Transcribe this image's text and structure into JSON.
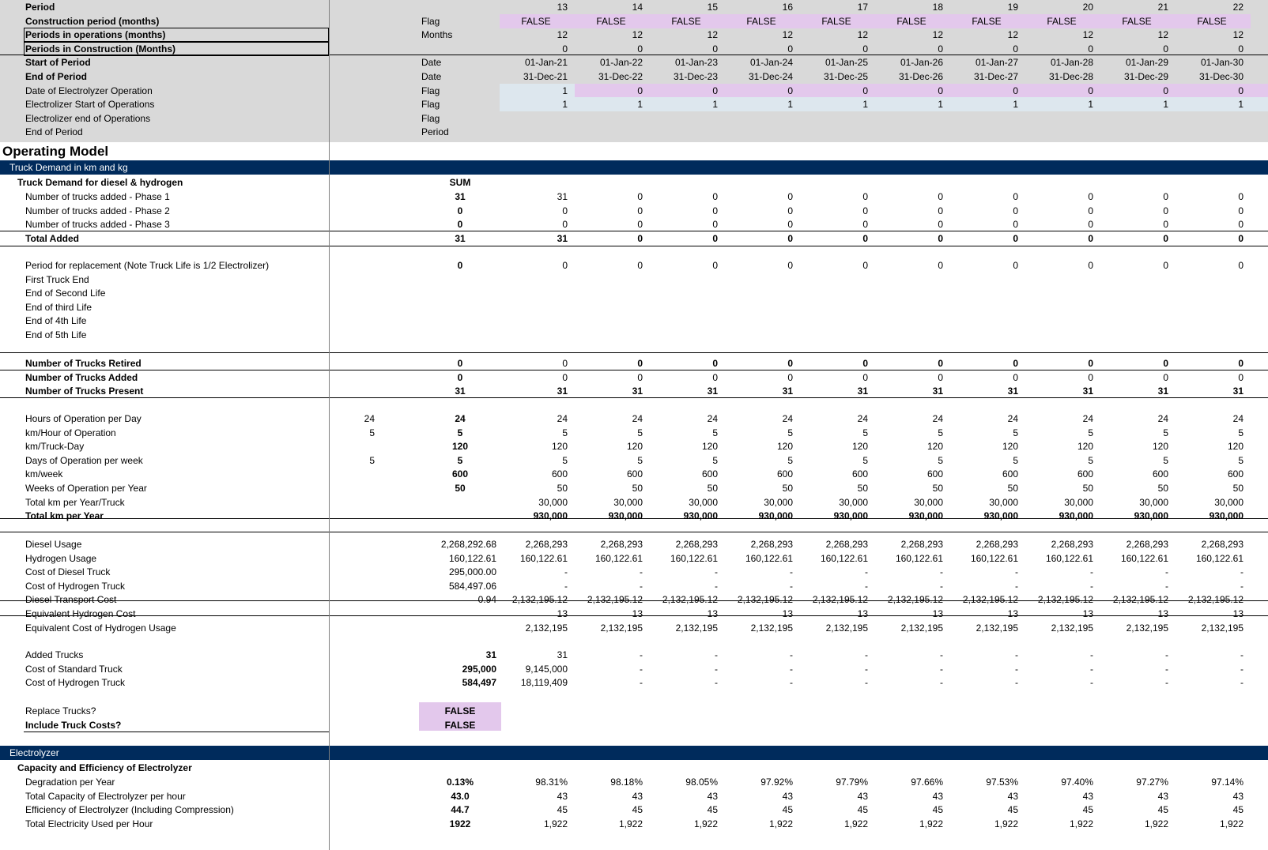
{
  "colors": {
    "header_grey": "#d9d9d9",
    "band_navy": "#002b5c",
    "flag_pink": "#e3c8ec",
    "input_blue": "#dde7ee"
  },
  "top": [
    {
      "label": "Period",
      "bold": true,
      "unit": "",
      "vals": [
        "13",
        "14",
        "15",
        "16",
        "17",
        "18",
        "19",
        "20",
        "21",
        "22"
      ]
    },
    {
      "label": "Construction period (months)",
      "bold": true,
      "unit": "Flag",
      "vals": [
        "FALSE",
        "FALSE",
        "FALSE",
        "FALSE",
        "FALSE",
        "FALSE",
        "FALSE",
        "FALSE",
        "FALSE",
        "FALSE"
      ],
      "center": true,
      "pink": true
    },
    {
      "label": "Periods in operations (months)",
      "bold": true,
      "unit": "Months",
      "vals": [
        "12",
        "12",
        "12",
        "12",
        "12",
        "12",
        "12",
        "12",
        "12",
        "12"
      ],
      "boxed": true
    },
    {
      "label": "Periods in Construction (Months)",
      "bold": true,
      "unit": "",
      "vals": [
        "0",
        "0",
        "0",
        "0",
        "0",
        "0",
        "0",
        "0",
        "0",
        "0"
      ],
      "boxed": true
    },
    {
      "label": "Start of Period",
      "bold": true,
      "unit": "Date",
      "vals": [
        "01-Jan-21",
        "01-Jan-22",
        "01-Jan-23",
        "01-Jan-24",
        "01-Jan-25",
        "01-Jan-26",
        "01-Jan-27",
        "01-Jan-28",
        "01-Jan-29",
        "01-Jan-30"
      ]
    },
    {
      "label": "End of Period",
      "bold": true,
      "unit": "Date",
      "vals": [
        "31-Dec-21",
        "31-Dec-22",
        "31-Dec-23",
        "31-Dec-24",
        "31-Dec-25",
        "31-Dec-26",
        "31-Dec-27",
        "31-Dec-28",
        "31-Dec-29",
        "31-Dec-30"
      ]
    },
    {
      "label": "Date of Electrolyzer Operation",
      "bold": false,
      "unit": "Flag",
      "vals": [
        "1",
        "0",
        "0",
        "0",
        "0",
        "0",
        "0",
        "0",
        "0",
        "0"
      ],
      "pinkrow": true
    },
    {
      "label": "Electrolizer Start of Operations",
      "bold": false,
      "unit": "Flag",
      "vals": [
        "1",
        "1",
        "1",
        "1",
        "1",
        "1",
        "1",
        "1",
        "1",
        "1"
      ],
      "bluerow": true
    },
    {
      "label": "Electrolizer end of Operations",
      "bold": false,
      "unit": "Flag",
      "vals": []
    },
    {
      "label": "End of Period",
      "bold": false,
      "unit": "Period",
      "vals": []
    }
  ],
  "section_title": "Operating Model",
  "band_truck": "Truck Demand in km and kg",
  "band_electrolyzer": "Electrolyzer",
  "truck_sub": "Truck Demand for diesel & hydrogen",
  "sum_header": "SUM",
  "rows_a": [
    {
      "label": "Number of trucks added - Phase 1",
      "sum": "31",
      "vals": [
        "31",
        "0",
        "0",
        "0",
        "0",
        "0",
        "0",
        "0",
        "0",
        "0"
      ]
    },
    {
      "label": "Number of trucks added - Phase 2",
      "sum": "0",
      "vals": [
        "0",
        "0",
        "0",
        "0",
        "0",
        "0",
        "0",
        "0",
        "0",
        "0"
      ]
    },
    {
      "label": "Number of trucks added - Phase 3",
      "sum": "0",
      "vals": [
        "0",
        "0",
        "0",
        "0",
        "0",
        "0",
        "0",
        "0",
        "0",
        "0"
      ]
    },
    {
      "label": "Total Added",
      "sum": "31",
      "vals": [
        "31",
        "0",
        "0",
        "0",
        "0",
        "0",
        "0",
        "0",
        "0",
        "0"
      ],
      "boldrow": true
    }
  ],
  "rows_b": [
    {
      "label": "Period for replacement (Note Truck Life is 1/2 Electrolizer)",
      "sum": "0",
      "vals": [
        "0",
        "0",
        "0",
        "0",
        "0",
        "0",
        "0",
        "0",
        "0",
        "0"
      ]
    },
    {
      "label": "First Truck End",
      "sum": "",
      "vals": []
    },
    {
      "label": "End of Second Life",
      "sum": "",
      "vals": []
    },
    {
      "label": "End of third Life",
      "sum": "",
      "vals": []
    },
    {
      "label": "End of 4th Life",
      "sum": "",
      "vals": []
    },
    {
      "label": "End of 5th Life",
      "sum": "",
      "vals": []
    }
  ],
  "rows_c": [
    {
      "label": "Number of Trucks Retired",
      "sum": "0",
      "vals": [
        "0",
        "0",
        "0",
        "0",
        "0",
        "0",
        "0",
        "0",
        "0",
        "0"
      ],
      "boldlabel": true,
      "boldvals": [
        false,
        true,
        true,
        true,
        true,
        true,
        true,
        true,
        true,
        true
      ]
    },
    {
      "label": "Number of Trucks Added",
      "sum": "0",
      "vals": [
        "0",
        "0",
        "0",
        "0",
        "0",
        "0",
        "0",
        "0",
        "0",
        "0"
      ],
      "boldlabel": true
    },
    {
      "label": "Number of Trucks Present",
      "sum": "31",
      "vals": [
        "31",
        "31",
        "31",
        "31",
        "31",
        "31",
        "31",
        "31",
        "31",
        "31"
      ],
      "boldlabel": true,
      "boldvals": [
        true,
        true,
        true,
        true,
        true,
        true,
        true,
        true,
        true,
        true
      ]
    }
  ],
  "rows_d": [
    {
      "label": "Hours of Operation per Day",
      "pre": "24",
      "sum": "24",
      "vals": [
        "24",
        "24",
        "24",
        "24",
        "24",
        "24",
        "24",
        "24",
        "24",
        "24"
      ]
    },
    {
      "label": "km/Hour of Operation",
      "pre": "5",
      "sum": "5",
      "vals": [
        "5",
        "5",
        "5",
        "5",
        "5",
        "5",
        "5",
        "5",
        "5",
        "5"
      ]
    },
    {
      "label": "km/Truck-Day",
      "pre": "",
      "sum": "120",
      "vals": [
        "120",
        "120",
        "120",
        "120",
        "120",
        "120",
        "120",
        "120",
        "120",
        "120"
      ]
    },
    {
      "label": "Days of Operation per week",
      "pre": "5",
      "sum": "5",
      "vals": [
        "5",
        "5",
        "5",
        "5",
        "5",
        "5",
        "5",
        "5",
        "5",
        "5"
      ]
    },
    {
      "label": "km/week",
      "pre": "",
      "sum": "600",
      "vals": [
        "600",
        "600",
        "600",
        "600",
        "600",
        "600",
        "600",
        "600",
        "600",
        "600"
      ]
    },
    {
      "label": "Weeks of Operation per Year",
      "pre": "",
      "sum": "50",
      "vals": [
        "50",
        "50",
        "50",
        "50",
        "50",
        "50",
        "50",
        "50",
        "50",
        "50"
      ]
    },
    {
      "label": "Total km per Year/Truck",
      "pre": "",
      "sum": "",
      "vals": [
        "30,000",
        "30,000",
        "30,000",
        "30,000",
        "30,000",
        "30,000",
        "30,000",
        "30,000",
        "30,000",
        "30,000"
      ]
    },
    {
      "label": "Total km per Year",
      "pre": "",
      "sum": "",
      "vals": [
        "930,000",
        "930,000",
        "930,000",
        "930,000",
        "930,000",
        "930,000",
        "930,000",
        "930,000",
        "930,000",
        "930,000"
      ],
      "boldrow": true
    }
  ],
  "rows_e": [
    {
      "label": "Diesel Usage",
      "sum": "2,268,292.68",
      "vals": [
        "2,268,293",
        "2,268,293",
        "2,268,293",
        "2,268,293",
        "2,268,293",
        "2,268,293",
        "2,268,293",
        "2,268,293",
        "2,268,293",
        "2,268,293"
      ]
    },
    {
      "label": "Hydrogen Usage",
      "sum": "160,122.61",
      "vals": [
        "160,122.61",
        "160,122.61",
        "160,122.61",
        "160,122.61",
        "160,122.61",
        "160,122.61",
        "160,122.61",
        "160,122.61",
        "160,122.61",
        "160,122.61"
      ]
    },
    {
      "label": "Cost of Diesel Truck",
      "sum": "295,000.00",
      "vals": [
        "-",
        "-",
        "-",
        "-",
        "-",
        "-",
        "-",
        "-",
        "-",
        "-"
      ]
    },
    {
      "label": "Cost of Hydrogen Truck",
      "sum": "584,497.06",
      "vals": [
        "-",
        "-",
        "-",
        "-",
        "-",
        "-",
        "-",
        "-",
        "-",
        "-"
      ]
    },
    {
      "label": "Diesel Transport Cost",
      "sum": "0.94",
      "vals": [
        "2,132,195.12",
        "2,132,195.12",
        "2,132,195.12",
        "2,132,195.12",
        "2,132,195.12",
        "2,132,195.12",
        "2,132,195.12",
        "2,132,195.12",
        "2,132,195.12",
        "2,132,195.12"
      ]
    },
    {
      "label": "Equivalent Hydrogen Cost",
      "sum": "",
      "vals": [
        "13",
        "13",
        "13",
        "13",
        "13",
        "13",
        "13",
        "13",
        "13",
        "13"
      ]
    },
    {
      "label": "Equivalent Cost of Hydrogen Usage",
      "sum": "",
      "vals": [
        "2,132,195",
        "2,132,195",
        "2,132,195",
        "2,132,195",
        "2,132,195",
        "2,132,195",
        "2,132,195",
        "2,132,195",
        "2,132,195",
        "2,132,195"
      ]
    }
  ],
  "rows_f": [
    {
      "label": "Added Trucks",
      "sum": "31",
      "vals": [
        "31",
        "-",
        "-",
        "-",
        "-",
        "-",
        "-",
        "-",
        "-",
        "-"
      ]
    },
    {
      "label": "Cost of Standard Truck",
      "sum": "295,000",
      "vals": [
        "9,145,000",
        "-",
        "-",
        "-",
        "-",
        "-",
        "-",
        "-",
        "-",
        "-"
      ]
    },
    {
      "label": "Cost of Hydrogen Truck",
      "sum": "584,497",
      "vals": [
        "18,119,409",
        "-",
        "-",
        "-",
        "-",
        "-",
        "-",
        "-",
        "-",
        "-"
      ]
    }
  ],
  "rows_g": [
    {
      "label": "Replace Trucks?",
      "sum": "FALSE"
    },
    {
      "label": "Include Truck Costs?",
      "sum": "FALSE"
    }
  ],
  "elec_sub": "Capacity and Efficiency of Electrolyzer",
  "rows_h": [
    {
      "label": "Degradation per Year",
      "sum": "0.13%",
      "vals": [
        "98.31%",
        "98.18%",
        "98.05%",
        "97.92%",
        "97.79%",
        "97.66%",
        "97.53%",
        "97.40%",
        "97.27%",
        "97.14%"
      ]
    },
    {
      "label": "Total Capacity of Electrolyzer per hour",
      "sum": "43.0",
      "vals": [
        "43",
        "43",
        "43",
        "43",
        "43",
        "43",
        "43",
        "43",
        "43",
        "43"
      ]
    },
    {
      "label": "Efficiency of Electrolyzer (Including Compression)",
      "sum": "44.7",
      "vals": [
        "45",
        "45",
        "45",
        "45",
        "45",
        "45",
        "45",
        "45",
        "45",
        "45"
      ]
    },
    {
      "label": "Total Electricity Used per Hour",
      "sum": "1922",
      "vals": [
        "1,922",
        "1,922",
        "1,922",
        "1,922",
        "1,922",
        "1,922",
        "1,922",
        "1,922",
        "1,922",
        "1,922"
      ]
    }
  ]
}
